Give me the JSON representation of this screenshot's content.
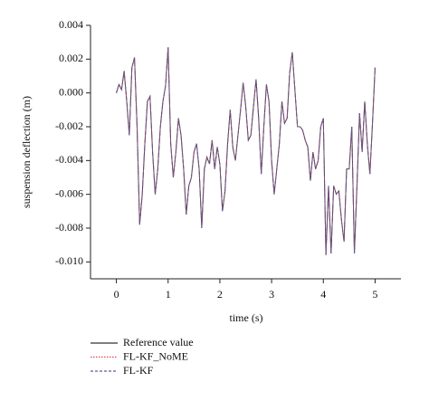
{
  "chart_data": {
    "type": "line",
    "x_label": "time (s)",
    "y_label": "suspension deflection (m)",
    "xlim": [
      -0.5,
      5.5
    ],
    "xticks": [
      0,
      1,
      2,
      3,
      4,
      5
    ],
    "ylim": [
      -0.011,
      0.004
    ],
    "yticks": [
      0.004,
      0.002,
      {
        "value": 0,
        "label": "0.000"
      },
      -0.002,
      -0.004,
      -0.006,
      -0.008,
      {
        "value": -0.01,
        "label": "-0.010"
      }
    ],
    "legend": "bottom",
    "x": [
      0,
      0.05,
      0.1,
      0.15,
      0.2,
      0.25,
      0.3,
      0.35,
      0.4,
      0.45,
      0.5,
      0.55,
      0.6,
      0.65,
      0.7,
      0.75,
      0.8,
      0.85,
      0.9,
      0.95,
      1.0,
      1.05,
      1.1,
      1.15,
      1.2,
      1.25,
      1.3,
      1.35,
      1.4,
      1.45,
      1.5,
      1.55,
      1.6,
      1.65,
      1.7,
      1.75,
      1.8,
      1.85,
      1.9,
      1.95,
      2.0,
      2.05,
      2.1,
      2.15,
      2.2,
      2.25,
      2.3,
      2.35,
      2.4,
      2.45,
      2.5,
      2.55,
      2.6,
      2.65,
      2.7,
      2.75,
      2.8,
      2.85,
      2.9,
      2.95,
      3.0,
      3.05,
      3.1,
      3.15,
      3.2,
      3.25,
      3.3,
      3.35,
      3.4,
      3.45,
      3.5,
      3.55,
      3.6,
      3.65,
      3.7,
      3.75,
      3.8,
      3.85,
      3.9,
      3.95,
      4.0,
      4.05,
      4.1,
      4.15,
      4.2,
      4.25,
      4.3,
      4.35,
      4.4,
      4.45,
      4.5,
      4.55,
      4.6,
      4.65,
      4.7,
      4.75,
      4.8,
      4.85,
      4.9,
      4.95,
      5.0
    ],
    "series": [
      {
        "name": "Reference value",
        "color": "#333333",
        "style": "solid",
        "values": [
          0,
          0.0005,
          0.0002,
          0.0013,
          -0.0005,
          -0.0025,
          0.0015,
          0.0021,
          -0.002,
          -0.0078,
          -0.006,
          -0.003,
          -0.0005,
          -0.0002,
          -0.0035,
          -0.006,
          -0.0045,
          -0.002,
          -0.0005,
          0.0004,
          0.0027,
          -0.003,
          -0.005,
          -0.0035,
          -0.0015,
          -0.0025,
          -0.0045,
          -0.0072,
          -0.0055,
          -0.005,
          -0.0035,
          -0.003,
          -0.0045,
          -0.008,
          -0.0045,
          -0.0038,
          -0.0042,
          -0.0028,
          -0.0045,
          -0.0032,
          -0.0042,
          -0.007,
          -0.0058,
          -0.003,
          -0.001,
          -0.0032,
          -0.004,
          -0.0025,
          -0.001,
          0.0006,
          -0.0008,
          -0.0028,
          -0.0025,
          -0.0008,
          0.0008,
          -0.0015,
          -0.0048,
          -0.002,
          0.0005,
          -0.0005,
          -0.004,
          -0.006,
          -0.0045,
          -0.003,
          -0.0005,
          -0.0018,
          -0.0015,
          0.0012,
          0.0024,
          0.0002,
          -0.002,
          -0.002,
          -0.0022,
          -0.0028,
          -0.0032,
          -0.0052,
          -0.0035,
          -0.0045,
          -0.004,
          -0.002,
          -0.0015,
          -0.0096,
          -0.0055,
          -0.0095,
          -0.0055,
          -0.006,
          -0.0058,
          -0.0075,
          -0.0088,
          -0.0045,
          -0.0045,
          -0.002,
          -0.0095,
          -0.0055,
          -0.0012,
          -0.0035,
          -0.0005,
          -0.003,
          -0.0048,
          -0.0018,
          0.0015
        ]
      },
      {
        "name": "FL-KF_NoME",
        "color": "#e04848",
        "style": "dotted",
        "values": [
          0,
          0.0005,
          0.0002,
          0.0013,
          -0.0005,
          -0.0025,
          0.0015,
          0.0021,
          -0.002,
          -0.0078,
          -0.006,
          -0.003,
          -0.0005,
          -0.0002,
          -0.0035,
          -0.006,
          -0.0045,
          -0.002,
          -0.0005,
          0.0004,
          0.0027,
          -0.003,
          -0.005,
          -0.0035,
          -0.0015,
          -0.0025,
          -0.0045,
          -0.0072,
          -0.0055,
          -0.005,
          -0.0035,
          -0.003,
          -0.0045,
          -0.008,
          -0.0045,
          -0.0038,
          -0.0042,
          -0.0028,
          -0.0045,
          -0.0032,
          -0.0042,
          -0.007,
          -0.0058,
          -0.003,
          -0.001,
          -0.0032,
          -0.004,
          -0.0025,
          -0.001,
          0.0006,
          -0.0008,
          -0.0028,
          -0.0025,
          -0.0008,
          0.0008,
          -0.0015,
          -0.0048,
          -0.002,
          0.0005,
          -0.0005,
          -0.004,
          -0.006,
          -0.0045,
          -0.003,
          -0.0005,
          -0.0018,
          -0.0015,
          0.0012,
          0.0024,
          0.0002,
          -0.002,
          -0.002,
          -0.0022,
          -0.0028,
          -0.0032,
          -0.0052,
          -0.0035,
          -0.0045,
          -0.004,
          -0.002,
          -0.0015,
          -0.0096,
          -0.0055,
          -0.0095,
          -0.0055,
          -0.006,
          -0.0058,
          -0.0075,
          -0.0088,
          -0.0045,
          -0.0045,
          -0.002,
          -0.0095,
          -0.0055,
          -0.0012,
          -0.0035,
          -0.0005,
          -0.003,
          -0.0048,
          -0.0018,
          0.0015
        ]
      },
      {
        "name": "FL-KF",
        "color": "#5a5aa0",
        "style": "dashed",
        "values": [
          0,
          0.0005,
          0.0002,
          0.0013,
          -0.0005,
          -0.0025,
          0.0015,
          0.0021,
          -0.002,
          -0.0078,
          -0.006,
          -0.003,
          -0.0005,
          -0.0002,
          -0.0035,
          -0.006,
          -0.0045,
          -0.002,
          -0.0005,
          0.0004,
          0.0027,
          -0.003,
          -0.005,
          -0.0035,
          -0.0015,
          -0.0025,
          -0.0045,
          -0.0072,
          -0.0055,
          -0.005,
          -0.0035,
          -0.003,
          -0.0045,
          -0.008,
          -0.0045,
          -0.0038,
          -0.0042,
          -0.0028,
          -0.0045,
          -0.0032,
          -0.0042,
          -0.007,
          -0.0058,
          -0.003,
          -0.001,
          -0.0032,
          -0.004,
          -0.0025,
          -0.001,
          0.0006,
          -0.0008,
          -0.0028,
          -0.0025,
          -0.0008,
          0.0008,
          -0.0015,
          -0.0048,
          -0.002,
          0.0005,
          -0.0005,
          -0.004,
          -0.006,
          -0.0045,
          -0.003,
          -0.0005,
          -0.0018,
          -0.0015,
          0.0012,
          0.0024,
          0.0002,
          -0.002,
          -0.002,
          -0.0022,
          -0.0028,
          -0.0032,
          -0.0052,
          -0.0035,
          -0.0045,
          -0.004,
          -0.002,
          -0.0015,
          -0.0096,
          -0.0055,
          -0.0095,
          -0.0055,
          -0.006,
          -0.0058,
          -0.0075,
          -0.0088,
          -0.0045,
          -0.0045,
          -0.002,
          -0.0095,
          -0.0055,
          -0.0012,
          -0.0035,
          -0.0005,
          -0.003,
          -0.0048,
          -0.0018,
          0.0015
        ]
      }
    ]
  }
}
